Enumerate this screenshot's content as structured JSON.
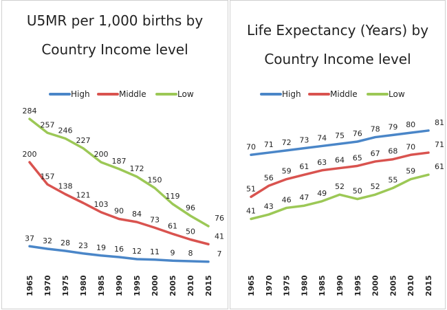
{
  "chart_data": [
    {
      "type": "line",
      "title_lines": [
        "U5MR per 1,000 births by",
        "Country Income level"
      ],
      "x": [
        "1965",
        "1970",
        "1975",
        "1980",
        "1985",
        "1990",
        "1995",
        "2000",
        "2005",
        "2010",
        "2015"
      ],
      "ylim": [
        0,
        300
      ],
      "grid": false,
      "legend_position": "top",
      "series": [
        {
          "name": "High",
          "color": "#4a86c8",
          "values": [
            37,
            32,
            28,
            23,
            19,
            16,
            12,
            11,
            9,
            8,
            7
          ]
        },
        {
          "name": "Middle",
          "color": "#d9534f",
          "values": [
            200,
            157,
            138,
            121,
            103,
            90,
            84,
            73,
            61,
            50,
            41
          ]
        },
        {
          "name": "Low",
          "color": "#9cc856",
          "values": [
            284,
            257,
            246,
            227,
            200,
            187,
            172,
            150,
            119,
            96,
            76
          ]
        }
      ]
    },
    {
      "type": "line",
      "title_lines": [
        "Life Expectancy (Years) by",
        "Country Income level"
      ],
      "x": [
        "1965",
        "1970",
        "1975",
        "1980",
        "1985",
        "1990",
        "1995",
        "2000",
        "2005",
        "2010",
        "2015"
      ],
      "ylim": [
        0,
        100
      ],
      "grid": false,
      "legend_position": "top",
      "series": [
        {
          "name": "High",
          "color": "#4a86c8",
          "values": [
            70,
            71,
            72,
            73,
            74,
            75,
            76,
            78,
            79,
            80,
            81
          ]
        },
        {
          "name": "Middle",
          "color": "#d9534f",
          "values": [
            51,
            56,
            59,
            61,
            63,
            64,
            65,
            67,
            68,
            70,
            71
          ]
        },
        {
          "name": "Low",
          "color": "#9cc856",
          "values": [
            41,
            43,
            46,
            47,
            49,
            52,
            50,
            52,
            55,
            59,
            61
          ]
        }
      ]
    }
  ]
}
